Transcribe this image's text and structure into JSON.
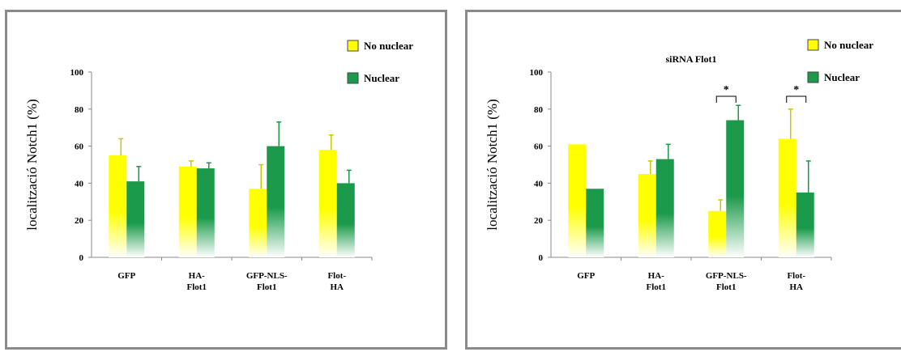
{
  "chart_data": [
    {
      "type": "bar",
      "title": "",
      "ylabel": "localització Notch1 (%)",
      "ylim": [
        0,
        100
      ],
      "yticks": [
        "0",
        "20",
        "40",
        "60",
        "80",
        "100"
      ],
      "categories": [
        [
          "GFP"
        ],
        [
          "HA-",
          "Flot1"
        ],
        [
          "GFP-NLS-",
          "Flot1"
        ],
        [
          "Flot-",
          "HA"
        ]
      ],
      "series": [
        {
          "name": "No nuclear",
          "color": "#ffff00",
          "values": [
            55,
            49,
            37,
            58
          ],
          "errors": [
            9,
            3,
            13,
            8
          ]
        },
        {
          "name": "Nuclear",
          "color": "#1a9a4a",
          "values": [
            41,
            48,
            60,
            40
          ],
          "errors": [
            8,
            3,
            13,
            7
          ]
        }
      ],
      "significance": [],
      "legend": "top-right",
      "grid": false
    },
    {
      "type": "bar",
      "title": "siRNA Flot1",
      "ylabel": "localització Notch1 (%)",
      "ylim": [
        0,
        100
      ],
      "yticks": [
        "0",
        "20",
        "40",
        "60",
        "80",
        "100"
      ],
      "categories": [
        [
          "GFP"
        ],
        [
          "HA-",
          "Flot1"
        ],
        [
          "GFP-NLS-",
          "Flot1"
        ],
        [
          "Flot-",
          "HA"
        ]
      ],
      "series": [
        {
          "name": "No nuclear",
          "color": "#ffff00",
          "values": [
            61,
            45,
            25,
            64
          ],
          "errors": [
            0,
            7,
            6,
            16
          ]
        },
        {
          "name": "Nuclear",
          "color": "#1a9a4a",
          "values": [
            37,
            53,
            74,
            35
          ],
          "errors": [
            0,
            8,
            8,
            17
          ]
        }
      ],
      "significance": [
        {
          "category_index": 2,
          "label": "*"
        },
        {
          "category_index": 3,
          "label": "*"
        }
      ],
      "legend": "top-right",
      "grid": false
    }
  ]
}
